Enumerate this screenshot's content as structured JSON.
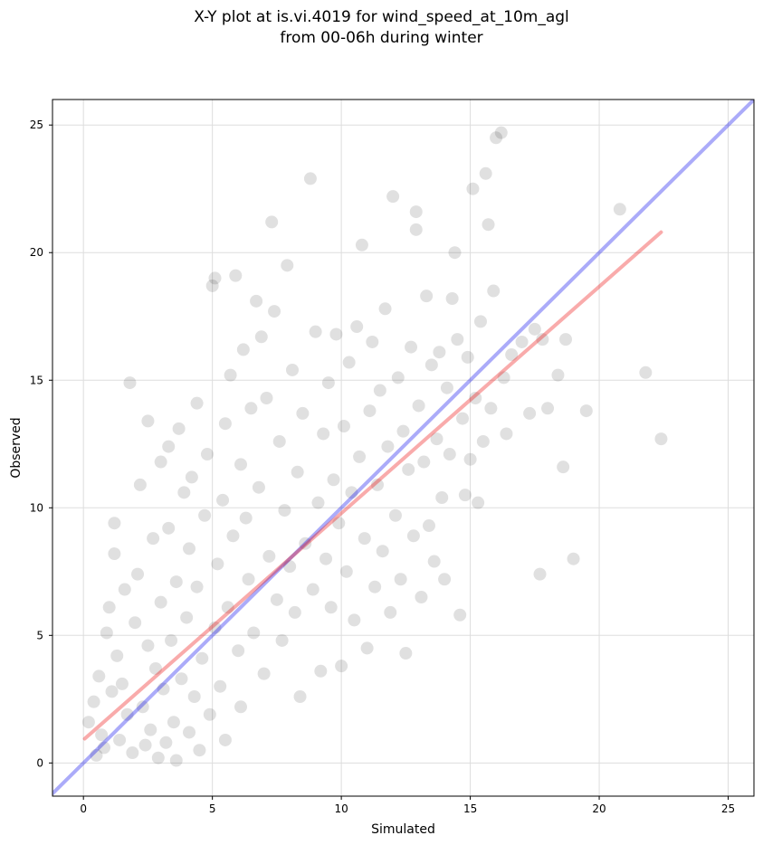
{
  "chart_data": {
    "type": "scatter",
    "title_lines": [
      "X-Y plot at is.vi.4019 for wind_speed_at_10m_agl",
      "from 00-06h during winter"
    ],
    "xlabel": "Simulated",
    "ylabel": "Observed",
    "xlim": [
      -1.2,
      26
    ],
    "ylim": [
      -1.3,
      26
    ],
    "xticks": [
      0,
      5,
      10,
      15,
      20,
      25
    ],
    "yticks": [
      0,
      5,
      10,
      15,
      20,
      25
    ],
    "grid": true,
    "colors": {
      "points": "#000000",
      "identity_line": "#0000ee",
      "fit_line": "#ee0000",
      "grid": "#dddddd"
    },
    "series": [
      {
        "kind": "scatter",
        "points": [
          [
            0.2,
            1.6
          ],
          [
            0.4,
            2.4
          ],
          [
            0.5,
            0.3
          ],
          [
            0.6,
            3.4
          ],
          [
            0.7,
            1.1
          ],
          [
            0.8,
            0.6
          ],
          [
            0.9,
            5.1
          ],
          [
            1.0,
            6.1
          ],
          [
            1.1,
            2.8
          ],
          [
            1.2,
            8.2
          ],
          [
            1.2,
            9.4
          ],
          [
            1.3,
            4.2
          ],
          [
            1.4,
            0.9
          ],
          [
            1.5,
            3.1
          ],
          [
            1.6,
            6.8
          ],
          [
            1.7,
            1.9
          ],
          [
            1.8,
            14.9
          ],
          [
            1.9,
            0.4
          ],
          [
            2.0,
            5.5
          ],
          [
            2.1,
            7.4
          ],
          [
            2.2,
            10.9
          ],
          [
            2.3,
            2.2
          ],
          [
            2.4,
            0.7
          ],
          [
            2.5,
            13.4
          ],
          [
            2.5,
            4.6
          ],
          [
            2.6,
            1.3
          ],
          [
            2.7,
            8.8
          ],
          [
            2.8,
            3.7
          ],
          [
            2.9,
            0.2
          ],
          [
            3.0,
            11.8
          ],
          [
            3.0,
            6.3
          ],
          [
            3.1,
            2.9
          ],
          [
            3.2,
            0.8
          ],
          [
            3.3,
            12.4
          ],
          [
            3.3,
            9.2
          ],
          [
            3.4,
            4.8
          ],
          [
            3.5,
            1.6
          ],
          [
            3.6,
            7.1
          ],
          [
            3.6,
            0.1
          ],
          [
            3.7,
            13.1
          ],
          [
            3.8,
            3.3
          ],
          [
            3.9,
            10.6
          ],
          [
            4.0,
            5.7
          ],
          [
            4.1,
            1.2
          ],
          [
            4.1,
            8.4
          ],
          [
            4.2,
            11.2
          ],
          [
            4.3,
            2.6
          ],
          [
            4.4,
            14.1
          ],
          [
            4.4,
            6.9
          ],
          [
            4.5,
            0.5
          ],
          [
            4.6,
            4.1
          ],
          [
            4.7,
            9.7
          ],
          [
            4.8,
            12.1
          ],
          [
            4.9,
            1.9
          ],
          [
            5.0,
            18.7
          ],
          [
            5.1,
            19.0
          ],
          [
            5.1,
            5.3
          ],
          [
            5.2,
            7.8
          ],
          [
            5.3,
            3.0
          ],
          [
            5.4,
            10.3
          ],
          [
            5.5,
            13.3
          ],
          [
            5.5,
            0.9
          ],
          [
            5.6,
            6.1
          ],
          [
            5.7,
            15.2
          ],
          [
            5.8,
            8.9
          ],
          [
            5.9,
            19.1
          ],
          [
            6.0,
            4.4
          ],
          [
            6.1,
            11.7
          ],
          [
            6.1,
            2.2
          ],
          [
            6.2,
            16.2
          ],
          [
            6.3,
            9.6
          ],
          [
            6.4,
            7.2
          ],
          [
            6.5,
            13.9
          ],
          [
            6.6,
            5.1
          ],
          [
            6.7,
            18.1
          ],
          [
            6.8,
            10.8
          ],
          [
            6.9,
            16.7
          ],
          [
            7.0,
            3.5
          ],
          [
            7.1,
            14.3
          ],
          [
            7.2,
            8.1
          ],
          [
            7.3,
            21.2
          ],
          [
            7.4,
            17.7
          ],
          [
            7.5,
            6.4
          ],
          [
            7.6,
            12.6
          ],
          [
            7.7,
            4.8
          ],
          [
            7.8,
            9.9
          ],
          [
            7.9,
            19.5
          ],
          [
            8.0,
            7.7
          ],
          [
            8.1,
            15.4
          ],
          [
            8.2,
            5.9
          ],
          [
            8.3,
            11.4
          ],
          [
            8.4,
            2.6
          ],
          [
            8.5,
            13.7
          ],
          [
            8.6,
            8.6
          ],
          [
            8.8,
            22.9
          ],
          [
            8.9,
            6.8
          ],
          [
            9.0,
            16.9
          ],
          [
            9.1,
            10.2
          ],
          [
            9.2,
            3.6
          ],
          [
            9.3,
            12.9
          ],
          [
            9.4,
            8.0
          ],
          [
            9.5,
            14.9
          ],
          [
            9.6,
            6.1
          ],
          [
            9.7,
            11.1
          ],
          [
            9.8,
            16.8
          ],
          [
            9.9,
            9.4
          ],
          [
            10.0,
            3.8
          ],
          [
            10.1,
            13.2
          ],
          [
            10.2,
            7.5
          ],
          [
            10.3,
            15.7
          ],
          [
            10.4,
            10.6
          ],
          [
            10.5,
            5.6
          ],
          [
            10.6,
            17.1
          ],
          [
            10.7,
            12.0
          ],
          [
            10.8,
            20.3
          ],
          [
            10.9,
            8.8
          ],
          [
            11.0,
            4.5
          ],
          [
            11.1,
            13.8
          ],
          [
            11.2,
            16.5
          ],
          [
            11.3,
            6.9
          ],
          [
            11.4,
            10.9
          ],
          [
            11.5,
            14.6
          ],
          [
            11.6,
            8.3
          ],
          [
            11.7,
            17.8
          ],
          [
            11.8,
            12.4
          ],
          [
            11.9,
            5.9
          ],
          [
            12.0,
            22.2
          ],
          [
            12.1,
            9.7
          ],
          [
            12.2,
            15.1
          ],
          [
            12.3,
            7.2
          ],
          [
            12.4,
            13.0
          ],
          [
            12.5,
            4.3
          ],
          [
            12.6,
            11.5
          ],
          [
            12.7,
            16.3
          ],
          [
            12.8,
            8.9
          ],
          [
            12.9,
            21.6
          ],
          [
            12.9,
            20.9
          ],
          [
            13.0,
            14.0
          ],
          [
            13.1,
            6.5
          ],
          [
            13.2,
            11.8
          ],
          [
            13.3,
            18.3
          ],
          [
            13.4,
            9.3
          ],
          [
            13.5,
            15.6
          ],
          [
            13.6,
            7.9
          ],
          [
            13.7,
            12.7
          ],
          [
            13.8,
            16.1
          ],
          [
            13.9,
            10.4
          ],
          [
            14.0,
            7.2
          ],
          [
            14.1,
            14.7
          ],
          [
            14.2,
            12.1
          ],
          [
            14.3,
            18.2
          ],
          [
            14.4,
            20.0
          ],
          [
            14.5,
            16.6
          ],
          [
            14.6,
            5.8
          ],
          [
            14.7,
            13.5
          ],
          [
            14.8,
            10.5
          ],
          [
            14.9,
            15.9
          ],
          [
            15.0,
            11.9
          ],
          [
            15.1,
            22.5
          ],
          [
            15.2,
            14.3
          ],
          [
            15.3,
            10.2
          ],
          [
            15.4,
            17.3
          ],
          [
            15.5,
            12.6
          ],
          [
            15.6,
            23.1
          ],
          [
            15.7,
            21.1
          ],
          [
            15.8,
            13.9
          ],
          [
            15.9,
            18.5
          ],
          [
            16.0,
            24.5
          ],
          [
            16.2,
            24.7
          ],
          [
            16.3,
            15.1
          ],
          [
            16.4,
            12.9
          ],
          [
            16.6,
            16.0
          ],
          [
            17.0,
            16.5
          ],
          [
            17.3,
            13.7
          ],
          [
            17.5,
            17.0
          ],
          [
            17.7,
            7.4
          ],
          [
            17.8,
            16.6
          ],
          [
            18.0,
            13.9
          ],
          [
            18.4,
            15.2
          ],
          [
            18.6,
            11.6
          ],
          [
            18.7,
            16.6
          ],
          [
            19.0,
            8.0
          ],
          [
            19.5,
            13.8
          ],
          [
            20.8,
            21.7
          ],
          [
            21.8,
            15.3
          ],
          [
            22.4,
            12.7
          ]
        ]
      },
      {
        "kind": "line",
        "points": [
          [
            -1.2,
            -1.2
          ],
          [
            26,
            26
          ]
        ]
      },
      {
        "kind": "line",
        "points": [
          [
            0.05,
            0.95
          ],
          [
            22.4,
            20.8
          ]
        ]
      }
    ]
  }
}
